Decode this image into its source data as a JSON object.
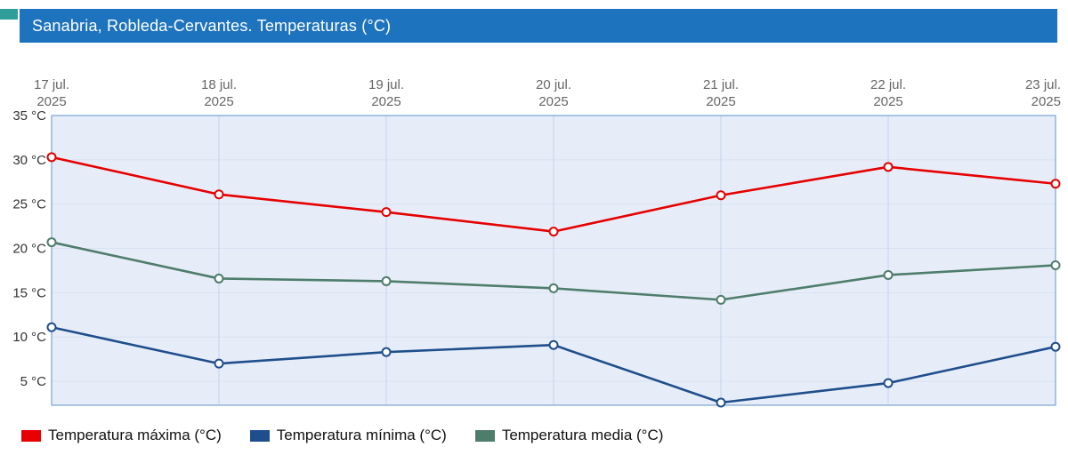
{
  "header": {
    "title": "Sanabria, Robleda-Cervantes. Temperaturas (°C)",
    "background": "#1e73be",
    "text_color": "#ffffff"
  },
  "chart_data": {
    "type": "line",
    "title": "Sanabria, Robleda-Cervantes. Temperaturas (°C)",
    "categories": [
      "17 jul. 2025",
      "18 jul. 2025",
      "19 jul. 2025",
      "20 jul. 2025",
      "21 jul. 2025",
      "22 jul. 2025",
      "23 jul. 2025"
    ],
    "x_labels": [
      [
        "17 jul.",
        "2025"
      ],
      [
        "18 jul.",
        "2025"
      ],
      [
        "19 jul.",
        "2025"
      ],
      [
        "20 jul.",
        "2025"
      ],
      [
        "21 jul.",
        "2025"
      ],
      [
        "22 jul.",
        "2025"
      ],
      [
        "23 jul.",
        "2025"
      ]
    ],
    "series": [
      {
        "name": "Temperatura máxima (°C)",
        "slug": "temperatura-maxima",
        "color": "#e60000",
        "values": [
          30.3,
          26.1,
          24.1,
          21.9,
          26.0,
          29.2,
          27.3
        ]
      },
      {
        "name": "Temperatura mínima (°C)",
        "slug": "temperatura-minima",
        "color": "#1f4e8c",
        "values": [
          11.1,
          7.0,
          8.3,
          9.1,
          2.6,
          4.8,
          8.9
        ]
      },
      {
        "name": "Temperatura media (°C)",
        "slug": "temperatura-media",
        "color": "#4f7d6b",
        "values": [
          20.7,
          16.6,
          16.3,
          15.5,
          14.2,
          17.0,
          18.1
        ]
      }
    ],
    "yticks": [
      35,
      30,
      25,
      20,
      15,
      10,
      5
    ],
    "ytick_suffix": " °C",
    "ylim": [
      2.3,
      35
    ],
    "grid": true,
    "legend_position": "bottom",
    "plot_bg": "#e7edf8",
    "vgrid_color": "#c3d4eb",
    "hgrid_color": "#d8e2f2",
    "border_color": "#7aa3d4",
    "marker_fill": "#ffffff"
  }
}
